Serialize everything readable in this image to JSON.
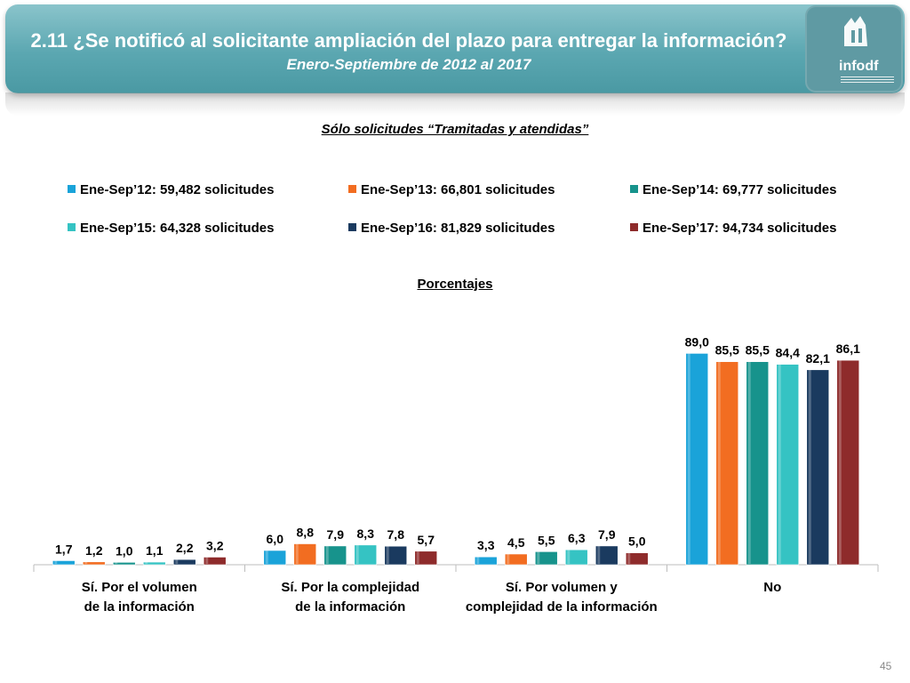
{
  "header": {
    "title": "2.11 ¿Se notificó al solicitante ampliación del plazo para entregar la información?",
    "subtitle": "Enero-Septiembre de 2012 al 2017",
    "logo_text": "infodf"
  },
  "note": "Sólo solicitudes “Tramitadas y atendidas”",
  "units_label": "Porcentajes",
  "page_number": "45",
  "chart_data": {
    "type": "bar",
    "title": "",
    "xlabel": "",
    "ylabel": "",
    "ylim": [
      0,
      100
    ],
    "grid": false,
    "legend_position": "top",
    "categories": [
      "Sí. Por el volumen de la información",
      "Sí. Por la complejidad de la información",
      "Sí. Por volumen y complejidad de la información",
      "No"
    ],
    "series": [
      {
        "name": "Ene-Sep’12: 59,482 solicitudes",
        "color": "#1aa3d9",
        "values": [
          1.7,
          6.0,
          3.3,
          89.0
        ],
        "labels": [
          "1,7",
          "6,0",
          "3,3",
          "89,0"
        ]
      },
      {
        "name": "Ene-Sep’13: 66,801 solicitudes",
        "color": "#f26d21",
        "values": [
          1.2,
          8.8,
          4.5,
          85.5
        ],
        "labels": [
          "1,2",
          "8,8",
          "4,5",
          "85,5"
        ]
      },
      {
        "name": "Ene-Sep’14: 69,777 solicitudes",
        "color": "#17938c",
        "values": [
          1.0,
          7.9,
          5.5,
          85.5
        ],
        "labels": [
          "1,0",
          "7,9",
          "5,5",
          "85,5"
        ]
      },
      {
        "name": "Ene-Sep’15: 64,328 solicitudes",
        "color": "#35c3c3",
        "values": [
          1.1,
          8.3,
          6.3,
          84.4
        ],
        "labels": [
          "1,1",
          "8,3",
          "6,3",
          "84,4"
        ]
      },
      {
        "name": "Ene-Sep’16: 81,829 solicitudes",
        "color": "#1a3a5f",
        "values": [
          2.2,
          7.8,
          7.9,
          82.1
        ],
        "labels": [
          "2,2",
          "7,8",
          "7,9",
          "82,1"
        ]
      },
      {
        "name": "Ene-Sep’17: 94,734 solicitudes",
        "color": "#8e2b2b",
        "values": [
          3.2,
          5.7,
          5.0,
          86.1
        ],
        "labels": [
          "3,2",
          "5,7",
          "5,0",
          "86,1"
        ]
      }
    ]
  }
}
